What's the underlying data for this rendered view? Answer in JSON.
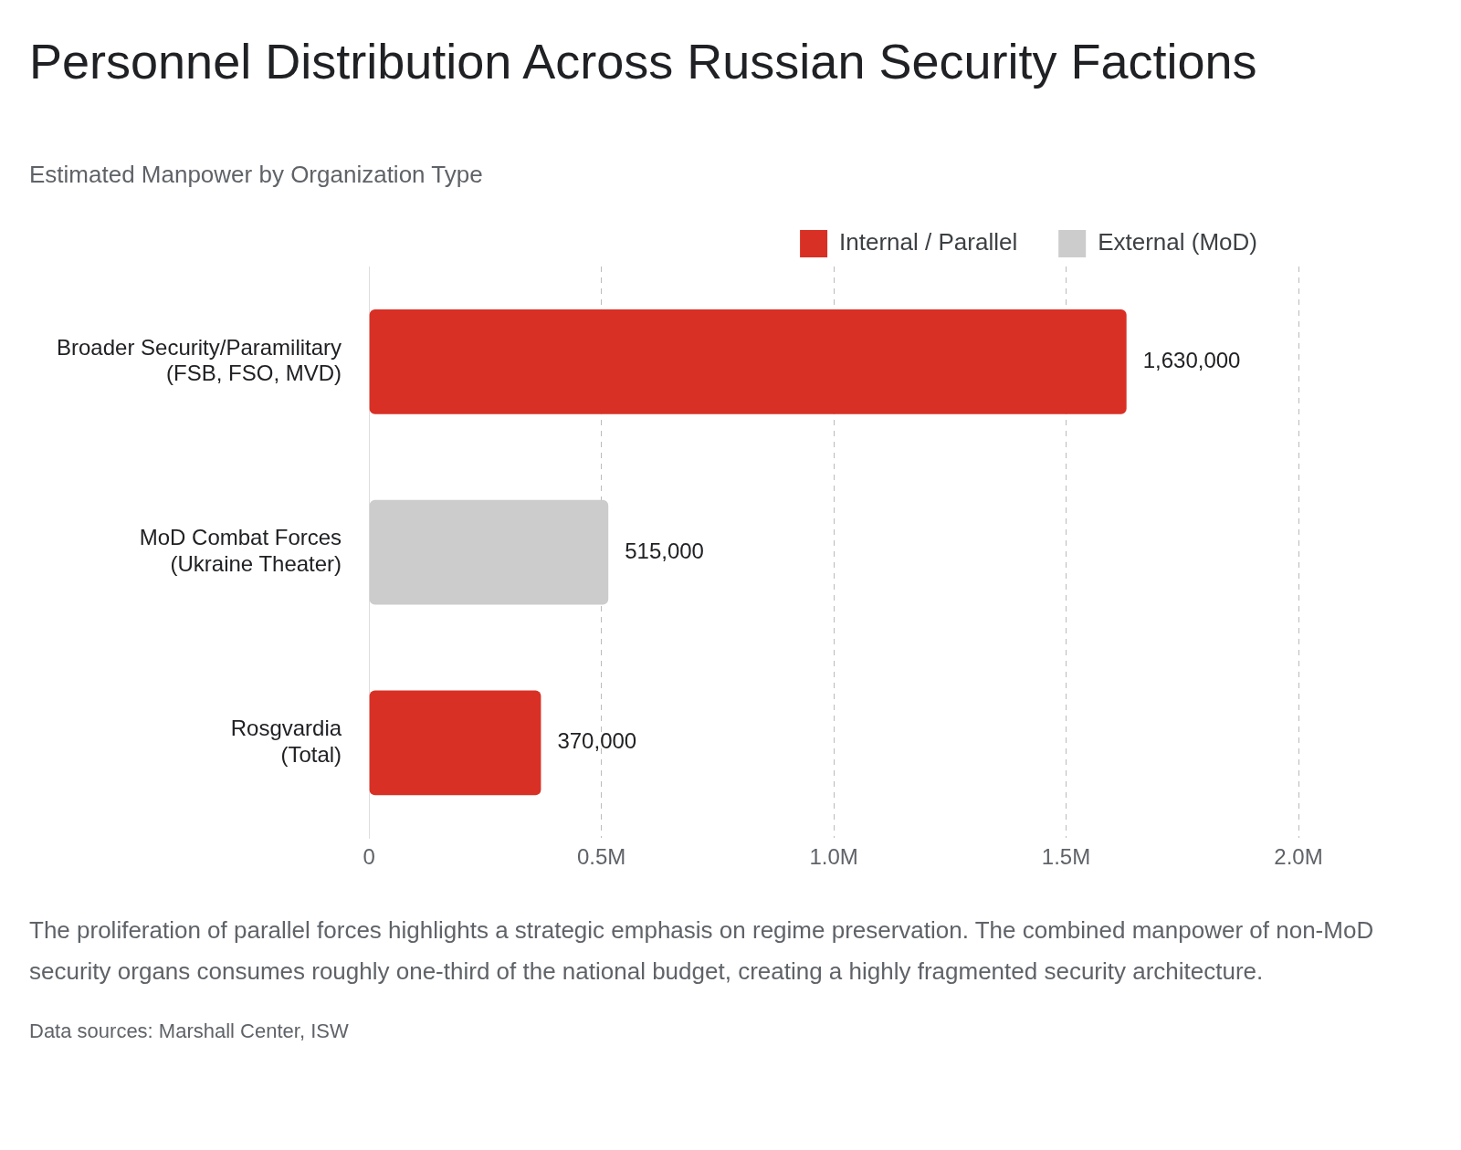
{
  "chart_data": {
    "type": "bar",
    "orientation": "horizontal",
    "title": "Personnel Distribution Across Russian Security Factions",
    "subtitle": "Estimated Manpower by Organization Type",
    "categories": [
      "Broader Security/Paramilitary\n(FSB, FSO, MVD)",
      "MoD Combat Forces\n(Ukraine Theater)",
      "Rosgvardia\n(Total)"
    ],
    "series": [
      {
        "name": "Internal / Parallel",
        "color": "#d93025",
        "values": [
          1630000,
          null,
          370000
        ],
        "value_labels": [
          "1,630,000",
          null,
          "370,000"
        ]
      },
      {
        "name": "External (MoD)",
        "color": "#cccccc",
        "values": [
          null,
          515000,
          null
        ],
        "value_labels": [
          null,
          "515,000",
          null
        ]
      }
    ],
    "xlim": [
      0,
      2000000
    ],
    "xticks": [
      0,
      {
        "value": 500000,
        "label": "0.5M"
      },
      {
        "value": 1000000,
        "label": "1.0M"
      },
      {
        "value": 1500000,
        "label": "1.5M"
      },
      {
        "value": 2000000,
        "label": "2.0M"
      }
    ],
    "grid": "x",
    "legend": "top right",
    "annotations": [
      "The proliferation of parallel forces highlights a strategic emphasis on regime preservation. The combined manpower of non-MoD security organs consumes roughly one-third of the national budget, creating a highly fragmented security architecture.",
      "Data sources: Marshall Center, ISW"
    ]
  }
}
